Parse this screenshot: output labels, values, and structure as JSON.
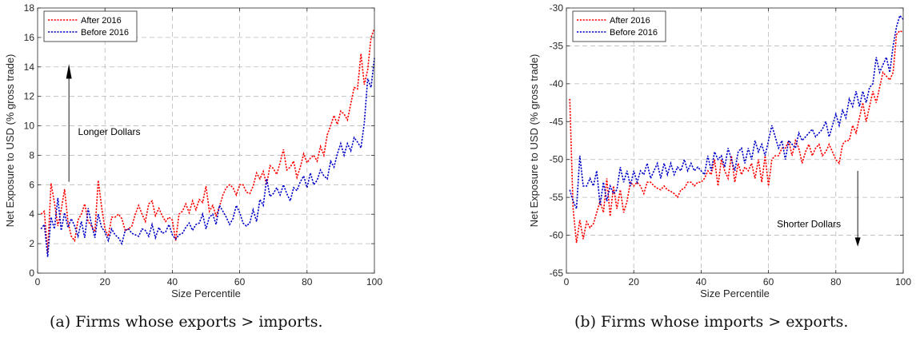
{
  "captions": {
    "a": "(a) Firms whose exports > imports.",
    "b": "(b) Firms whose imports > exports."
  },
  "colors": {
    "after": "#ff0000",
    "before": "#0000c8",
    "grid": "#b8b8b8"
  },
  "chart_data": [
    {
      "type": "line",
      "xlabel": "Size Percentile",
      "ylabel": "Net Exposure to USD (% gross trade)",
      "xlim": [
        0,
        100
      ],
      "ylim": [
        0,
        18
      ],
      "xticks": [
        0,
        20,
        40,
        60,
        80,
        100
      ],
      "yticks": [
        0,
        2,
        4,
        6,
        8,
        10,
        12,
        14,
        16,
        18
      ],
      "grid": true,
      "legend_position": "top-left",
      "annotations": [
        {
          "text": "Longer Dollars",
          "x": 12,
          "y": 9.6,
          "arrow": "up"
        }
      ],
      "series": [
        {
          "name": "After 2016",
          "color": "#ff0000",
          "x": [
            1,
            2,
            3,
            4,
            5,
            6,
            7,
            8,
            9,
            10,
            11,
            12,
            13,
            14,
            15,
            16,
            17,
            18,
            19,
            20,
            21,
            22,
            23,
            24,
            25,
            26,
            27,
            28,
            29,
            30,
            31,
            32,
            33,
            34,
            35,
            36,
            37,
            38,
            39,
            40,
            41,
            42,
            43,
            44,
            45,
            46,
            47,
            48,
            49,
            50,
            51,
            52,
            53,
            54,
            55,
            56,
            57,
            58,
            59,
            60,
            61,
            62,
            63,
            64,
            65,
            66,
            67,
            68,
            69,
            70,
            71,
            72,
            73,
            74,
            75,
            76,
            77,
            78,
            79,
            80,
            81,
            82,
            83,
            84,
            85,
            86,
            87,
            88,
            89,
            90,
            91,
            92,
            93,
            94,
            95,
            96,
            97,
            98,
            99,
            100
          ],
          "values": [
            4.0,
            4.2,
            1.4,
            6.1,
            4.8,
            3.2,
            4.3,
            5.7,
            3.5,
            2.5,
            2.2,
            3.6,
            4.0,
            4.7,
            3.5,
            3.2,
            2.8,
            6.3,
            4.5,
            3.0,
            2.5,
            3.8,
            3.8,
            4.0,
            3.7,
            2.9,
            3.0,
            3.2,
            4.0,
            4.6,
            4.0,
            3.5,
            4.7,
            4.9,
            3.9,
            4.4,
            3.9,
            3.5,
            3.8,
            3.6,
            2.2,
            4.0,
            4.2,
            4.7,
            4.1,
            4.9,
            4.3,
            5.0,
            4.8,
            5.9,
            4.2,
            4.6,
            3.9,
            4.5,
            5.3,
            5.8,
            6.0,
            5.8,
            5.3,
            6.0,
            6.0,
            5.5,
            5.4,
            5.9,
            6.8,
            6.4,
            6.9,
            6.0,
            7.3,
            7.1,
            6.7,
            7.5,
            8.4,
            7.0,
            7.2,
            7.6,
            6.5,
            7.2,
            8.1,
            7.5,
            7.8,
            8.0,
            7.6,
            8.6,
            8.0,
            9.4,
            10.0,
            10.7,
            10.1,
            11.0,
            10.8,
            10.4,
            11.5,
            12.6,
            12.5,
            14.9,
            12.8,
            13.8,
            16.0,
            16.6
          ]
        },
        {
          "name": "Before 2016",
          "color": "#0000c8",
          "x": [
            1,
            2,
            3,
            4,
            5,
            6,
            7,
            8,
            9,
            10,
            11,
            12,
            13,
            14,
            15,
            16,
            17,
            18,
            19,
            20,
            21,
            22,
            23,
            24,
            25,
            26,
            27,
            28,
            29,
            30,
            31,
            32,
            33,
            34,
            35,
            36,
            37,
            38,
            39,
            40,
            41,
            42,
            43,
            44,
            45,
            46,
            47,
            48,
            49,
            50,
            51,
            52,
            53,
            54,
            55,
            56,
            57,
            58,
            59,
            60,
            61,
            62,
            63,
            64,
            65,
            66,
            67,
            68,
            69,
            70,
            71,
            72,
            73,
            74,
            75,
            76,
            77,
            78,
            79,
            80,
            81,
            82,
            83,
            84,
            85,
            86,
            87,
            88,
            89,
            90,
            91,
            92,
            93,
            94,
            95,
            96,
            97,
            98,
            99,
            100
          ],
          "values": [
            3.0,
            3.3,
            1.1,
            3.8,
            3.0,
            5.1,
            2.9,
            4.1,
            3.1,
            3.7,
            3.2,
            2.5,
            3.5,
            2.4,
            4.4,
            3.3,
            2.4,
            4.0,
            3.1,
            2.8,
            2.2,
            3.0,
            2.6,
            2.4,
            2.0,
            2.9,
            3.0,
            2.7,
            2.6,
            2.5,
            3.0,
            2.9,
            2.5,
            3.3,
            2.4,
            3.1,
            2.7,
            2.8,
            3.3,
            2.6,
            2.3,
            2.6,
            2.7,
            3.1,
            3.4,
            2.9,
            3.3,
            3.4,
            4.0,
            3.0,
            3.8,
            4.0,
            3.3,
            4.6,
            4.2,
            3.8,
            3.3,
            3.7,
            4.6,
            4.1,
            3.4,
            3.2,
            3.4,
            4.3,
            3.5,
            5.0,
            4.6,
            6.4,
            5.2,
            5.4,
            5.8,
            5.3,
            6.0,
            5.4,
            4.9,
            5.8,
            5.6,
            6.2,
            6.6,
            5.8,
            6.8,
            6.0,
            6.3,
            7.0,
            6.6,
            6.4,
            7.6,
            7.2,
            8.1,
            8.8,
            8.0,
            8.8,
            8.3,
            9.2,
            8.9,
            8.5,
            10.2,
            13.2,
            12.6,
            14.6
          ]
        }
      ]
    },
    {
      "type": "line",
      "xlabel": "Size Percentile",
      "ylabel": "Net Exposure to USD (% gross trade)",
      "xlim": [
        0,
        100
      ],
      "ylim": [
        -65,
        -30
      ],
      "xticks": [
        0,
        20,
        40,
        60,
        80,
        100
      ],
      "yticks": [
        -65,
        -60,
        -55,
        -50,
        -45,
        -40,
        -35,
        -30
      ],
      "grid": true,
      "legend_position": "top-left",
      "annotations": [
        {
          "text": "Shorter Dollars",
          "x": 86,
          "y": -58.5,
          "arrow": "down"
        }
      ],
      "series": [
        {
          "name": "After 2016",
          "color": "#ff0000",
          "x": [
            1,
            2,
            3,
            4,
            5,
            6,
            7,
            8,
            9,
            10,
            11,
            12,
            13,
            14,
            15,
            16,
            17,
            18,
            19,
            20,
            21,
            22,
            23,
            24,
            25,
            26,
            27,
            28,
            29,
            30,
            31,
            32,
            33,
            34,
            35,
            36,
            37,
            38,
            39,
            40,
            41,
            42,
            43,
            44,
            45,
            46,
            47,
            48,
            49,
            50,
            51,
            52,
            53,
            54,
            55,
            56,
            57,
            58,
            59,
            60,
            61,
            62,
            63,
            64,
            65,
            66,
            67,
            68,
            69,
            70,
            71,
            72,
            73,
            74,
            75,
            76,
            77,
            78,
            79,
            80,
            81,
            82,
            83,
            84,
            85,
            86,
            87,
            88,
            89,
            90,
            91,
            92,
            93,
            94,
            95,
            96,
            97,
            98,
            99,
            100
          ],
          "values": [
            -42.0,
            -56.5,
            -61.0,
            -58.0,
            -60.5,
            -58.2,
            -59.0,
            -58.5,
            -57.0,
            -55.5,
            -57.0,
            -52.5,
            -57.5,
            -53.5,
            -56.5,
            -54.0,
            -57.0,
            -55.5,
            -53.0,
            -53.5,
            -53.0,
            -53.5,
            -54.5,
            -53.0,
            -53.0,
            -53.5,
            -53.8,
            -54.0,
            -53.5,
            -54.0,
            -54.2,
            -54.5,
            -55.0,
            -54.0,
            -53.8,
            -53.0,
            -53.0,
            -53.5,
            -53.0,
            -53.0,
            -52.5,
            -51.5,
            -52.0,
            -50.0,
            -53.5,
            -50.0,
            -51.5,
            -52.5,
            -49.5,
            -53.0,
            -50.5,
            -52.0,
            -51.0,
            -51.5,
            -50.5,
            -52.5,
            -50.0,
            -53.0,
            -49.5,
            -53.5,
            -50.0,
            -49.5,
            -49.5,
            -48.5,
            -48.5,
            -47.5,
            -49.5,
            -47.5,
            -48.5,
            -50.5,
            -49.0,
            -48.0,
            -49.5,
            -48.5,
            -48.0,
            -49.5,
            -49.0,
            -48.0,
            -49.0,
            -50.0,
            -50.5,
            -48.0,
            -47.5,
            -47.5,
            -45.5,
            -46.5,
            -44.5,
            -42.5,
            -45.0,
            -43.0,
            -41.0,
            -42.5,
            -40.5,
            -38.5,
            -39.0,
            -39.5,
            -38.5,
            -33.5,
            -33.0,
            -33.2
          ]
        },
        {
          "name": "Before 2016",
          "color": "#0000c8",
          "x": [
            1,
            2,
            3,
            4,
            5,
            6,
            7,
            8,
            9,
            10,
            11,
            12,
            13,
            14,
            15,
            16,
            17,
            18,
            19,
            20,
            21,
            22,
            23,
            24,
            25,
            26,
            27,
            28,
            29,
            30,
            31,
            32,
            33,
            34,
            35,
            36,
            37,
            38,
            39,
            40,
            41,
            42,
            43,
            44,
            45,
            46,
            47,
            48,
            49,
            50,
            51,
            52,
            53,
            54,
            55,
            56,
            57,
            58,
            59,
            60,
            61,
            62,
            63,
            64,
            65,
            66,
            67,
            68,
            69,
            70,
            71,
            72,
            73,
            74,
            75,
            76,
            77,
            78,
            79,
            80,
            81,
            82,
            83,
            84,
            85,
            86,
            87,
            88,
            89,
            90,
            91,
            92,
            93,
            94,
            95,
            96,
            97,
            98,
            99,
            100
          ],
          "values": [
            -54.0,
            -55.5,
            -56.5,
            -49.5,
            -53.5,
            -53.5,
            -52.5,
            -53.5,
            -51.5,
            -56.0,
            -53.0,
            -55.5,
            -53.5,
            -54.5,
            -54.0,
            -51.0,
            -53.0,
            -51.5,
            -53.5,
            -51.5,
            -53.0,
            -51.5,
            -52.0,
            -50.5,
            -52.5,
            -51.5,
            -50.5,
            -52.5,
            -50.5,
            -52.0,
            -50.5,
            -52.0,
            -51.0,
            -51.5,
            -50.0,
            -51.5,
            -50.5,
            -51.5,
            -51.0,
            -51.5,
            -52.0,
            -49.5,
            -51.5,
            -49.0,
            -50.0,
            -49.5,
            -51.0,
            -48.5,
            -50.0,
            -51.5,
            -49.0,
            -48.5,
            -50.5,
            -48.5,
            -50.0,
            -47.5,
            -49.0,
            -48.0,
            -49.5,
            -47.5,
            -45.5,
            -47.0,
            -48.5,
            -47.5,
            -50.0,
            -47.5,
            -48.0,
            -48.5,
            -46.5,
            -47.5,
            -47.0,
            -46.5,
            -46.0,
            -47.0,
            -46.5,
            -46.0,
            -45.0,
            -47.0,
            -45.5,
            -44.0,
            -45.5,
            -43.5,
            -44.5,
            -42.0,
            -43.0,
            -41.0,
            -43.0,
            -41.0,
            -42.5,
            -40.5,
            -40.0,
            -36.5,
            -38.5,
            -37.5,
            -36.5,
            -38.5,
            -35.0,
            -32.5,
            -31.0,
            -31.5
          ]
        }
      ]
    }
  ]
}
